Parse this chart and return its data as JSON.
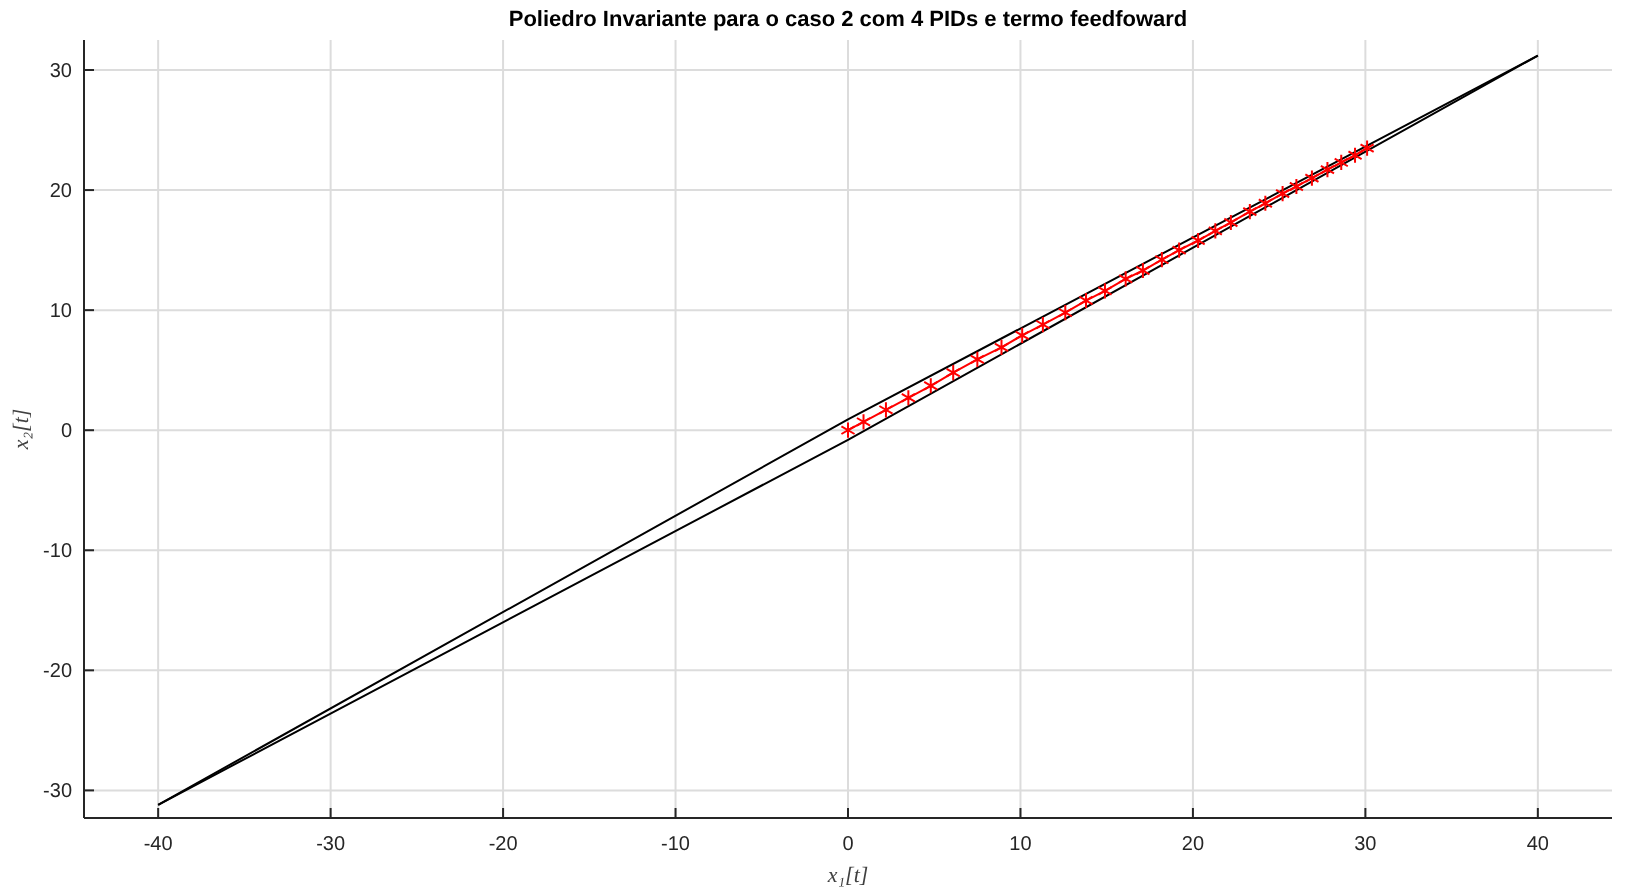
{
  "chart_data": {
    "type": "line",
    "title": "Poliedro Invariante para o caso 2 com 4 PIDs e termo feedfoward",
    "xlabel": "x₁[t]",
    "ylabel": "x₂[t]",
    "xlim": [
      -44.3,
      44.3
    ],
    "ylim": [
      -32.3,
      32.5
    ],
    "xticks": [
      -40,
      -30,
      -20,
      -10,
      0,
      10,
      20,
      30,
      40
    ],
    "yticks": [
      -30,
      -20,
      -10,
      0,
      10,
      20,
      30
    ],
    "grid": true,
    "series": [
      {
        "type": "line",
        "color": "#000000",
        "marker": "none",
        "x": [
          -40,
          0,
          40
        ],
        "values": [
          -31.2,
          0.9,
          31.2
        ]
      },
      {
        "type": "line",
        "color": "#000000",
        "marker": "none",
        "x": [
          -40,
          0,
          40
        ],
        "values": [
          -31.2,
          -0.8,
          31.2
        ]
      },
      {
        "type": "line",
        "color": "#ff0000",
        "marker": "cross",
        "x": [
          0,
          0.9,
          2.2,
          3.5,
          4.8,
          6.1,
          7.5,
          8.9,
          10.1,
          11.3,
          12.6,
          13.8,
          14.9,
          16.1,
          17.1,
          18.2,
          19.2,
          20.3,
          21.3,
          22.2,
          23.3,
          24.2,
          25.2,
          26.0,
          26.9,
          27.8,
          28.6,
          29.4,
          30.1
        ],
        "values": [
          0,
          0.7,
          1.7,
          2.7,
          3.7,
          4.8,
          5.9,
          6.9,
          7.9,
          8.8,
          9.8,
          10.8,
          11.6,
          12.6,
          13.3,
          14.2,
          15.0,
          15.8,
          16.6,
          17.3,
          18.2,
          18.9,
          19.7,
          20.3,
          21.0,
          21.7,
          22.3,
          22.9,
          23.5
        ]
      }
    ]
  }
}
